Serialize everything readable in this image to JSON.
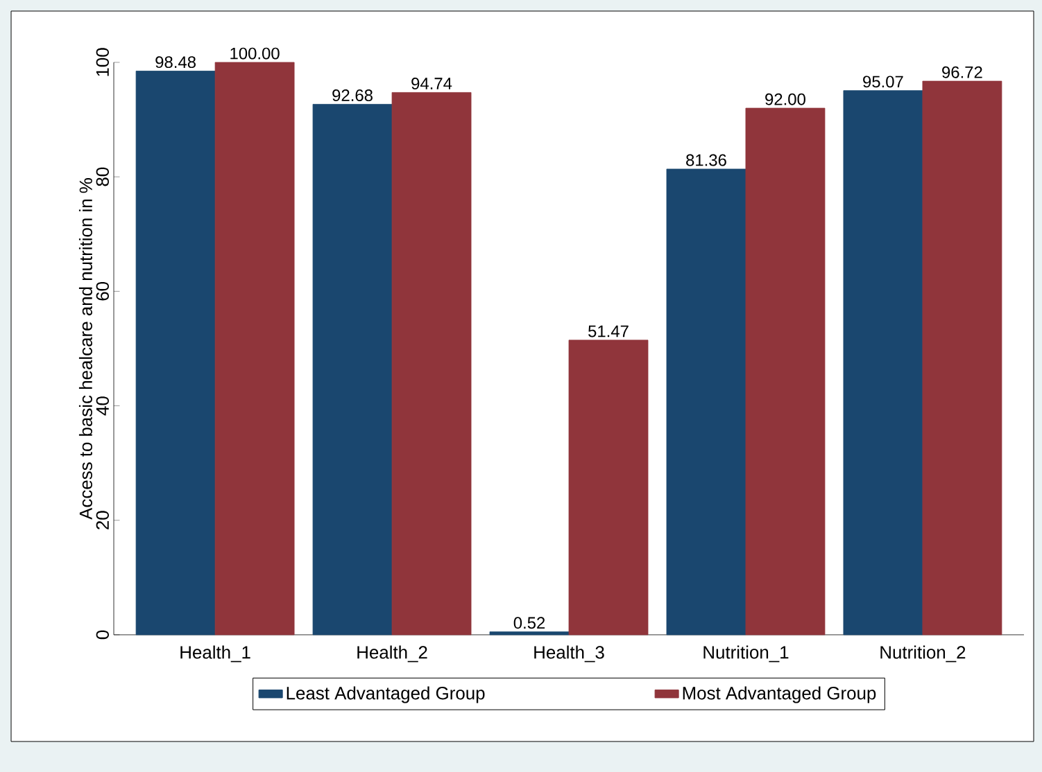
{
  "chart_data": {
    "type": "bar",
    "ylabel": "Access to basic healcare and nutrition in %",
    "categories": [
      "Health_1",
      "Health_2",
      "Health_3",
      "Nutrition_1",
      "Nutrition_2"
    ],
    "series": [
      {
        "name": "Least Advantaged Group",
        "color": "#1a476f",
        "values": [
          98.48,
          92.68,
          0.52,
          81.36,
          95.07
        ],
        "value_labels": [
          "98.48",
          "92.68",
          "0.52",
          "81.36",
          "95.07"
        ]
      },
      {
        "name": "Most Advantaged Group",
        "color": "#90353b",
        "values": [
          100,
          94.74,
          51.47,
          92,
          96.72
        ],
        "value_labels": [
          "100.00",
          "94.74",
          "51.47",
          "92.00",
          "96.72"
        ]
      }
    ],
    "ylim": [
      0,
      100
    ],
    "yticks": [
      0,
      20,
      40,
      60,
      80,
      100
    ],
    "grid": false,
    "legend": "bottom"
  }
}
